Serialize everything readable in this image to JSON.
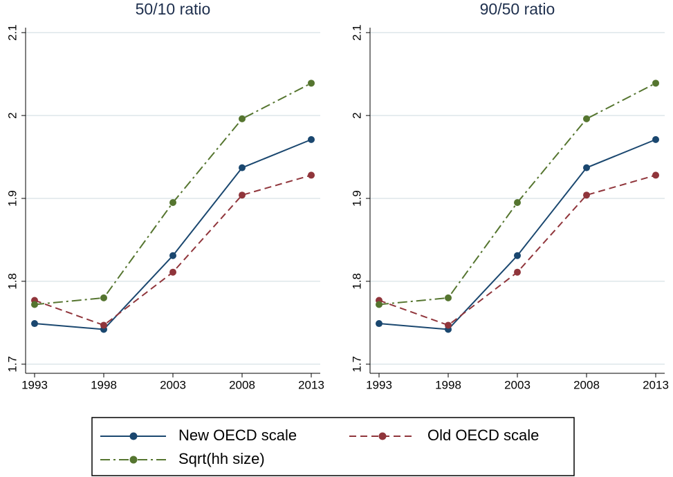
{
  "chart_data": [
    {
      "type": "line",
      "title": "50/10 ratio",
      "x": [
        1993,
        1998,
        2003,
        2008,
        2013
      ],
      "xlim": [
        1992.35,
        2013.65
      ],
      "xticks": [
        1993,
        1998,
        2003,
        2008,
        2013
      ],
      "ylim": [
        1.689,
        2.106
      ],
      "yticks": [
        1.7,
        1.8,
        1.9,
        2,
        2.1
      ],
      "grid": true,
      "series": [
        {
          "name": "New OECD scale",
          "color": "#1a476f",
          "style": "solid",
          "values": [
            1.749,
            1.742,
            1.831,
            1.937,
            1.971
          ]
        },
        {
          "name": "Old OECD scale",
          "color": "#90353b",
          "style": "dash",
          "values": [
            1.777,
            1.747,
            1.811,
            1.904,
            1.928
          ]
        },
        {
          "name": "Sqrt(hh size)",
          "color": "#55752f",
          "style": "dashdot",
          "values": [
            1.772,
            1.78,
            1.895,
            1.996,
            2.039
          ]
        }
      ]
    },
    {
      "type": "line",
      "title": "90/50 ratio",
      "x": [
        1993,
        1998,
        2003,
        2008,
        2013
      ],
      "xlim": [
        1992.35,
        2013.65
      ],
      "xticks": [
        1993,
        1998,
        2003,
        2008,
        2013
      ],
      "ylim": [
        1.689,
        2.106
      ],
      "yticks": [
        1.7,
        1.8,
        1.9,
        2,
        2.1
      ],
      "grid": true,
      "series": [
        {
          "color": "#1a476f",
          "style": "solid",
          "values": [
            1.749,
            1.742,
            1.831,
            1.937,
            1.971
          ]
        },
        {
          "color": "#90353b",
          "style": "dash",
          "values": [
            1.777,
            1.747,
            1.811,
            1.904,
            1.928
          ]
        },
        {
          "color": "#55752f",
          "style": "dashdot",
          "values": [
            1.772,
            1.78,
            1.895,
            1.996,
            2.039
          ]
        }
      ]
    }
  ]
}
